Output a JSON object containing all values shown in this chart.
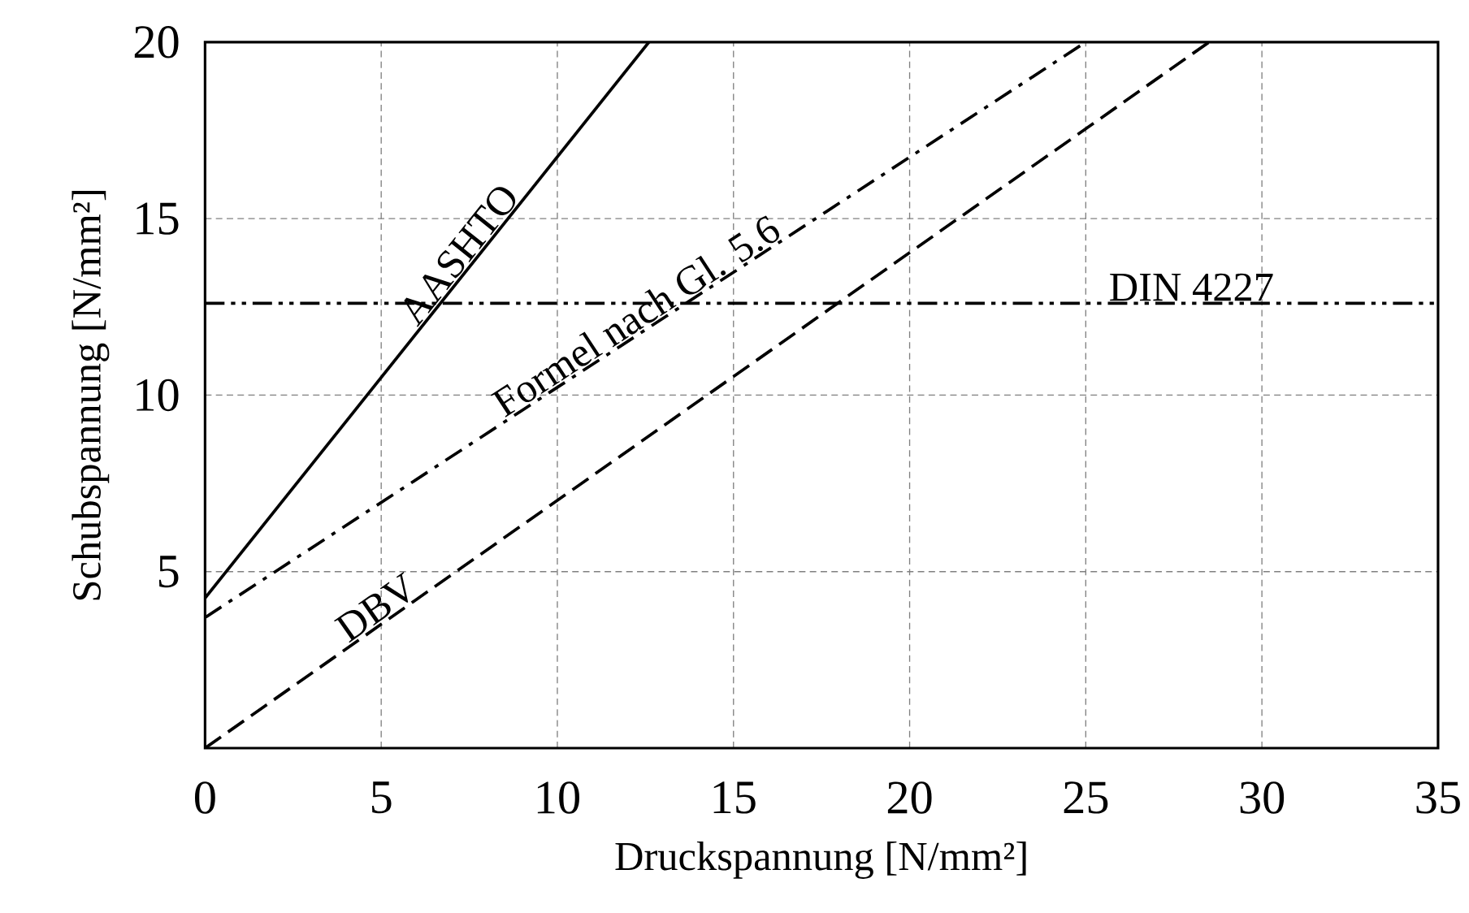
{
  "chart_data": {
    "type": "line",
    "xlabel": "Druckspannung [N/mm²]",
    "ylabel": "Schubspannung [N/mm²]",
    "xlim": [
      0,
      35
    ],
    "ylim": [
      0,
      20
    ],
    "xticks": [
      0,
      5,
      10,
      15,
      20,
      25,
      30,
      35
    ],
    "yticks": [
      5,
      10,
      15,
      20
    ],
    "grid": true,
    "series": [
      {
        "name": "AASHTO",
        "color": "#000000",
        "line_style": "solid",
        "x": [
          0,
          12.6
        ],
        "values": [
          4.25,
          20
        ]
      },
      {
        "name": "Formel nach Gl. 5.6",
        "color": "#000000",
        "line_style": "dashdot",
        "x": [
          0,
          25
        ],
        "values": [
          3.7,
          20
        ]
      },
      {
        "name": "DBV",
        "color": "#000000",
        "line_style": "dashed",
        "x": [
          0,
          28.5
        ],
        "values": [
          0,
          20
        ]
      },
      {
        "name": "DIN 4227",
        "color": "#000000",
        "line_style": "dashdotdot",
        "x": [
          0,
          35
        ],
        "values": [
          12.6,
          12.6
        ]
      }
    ]
  }
}
